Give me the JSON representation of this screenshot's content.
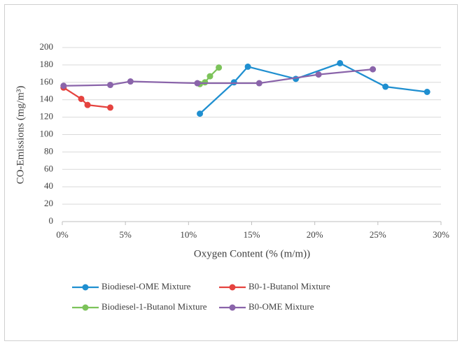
{
  "chart_data": {
    "type": "line",
    "x_label": "Oxygen Content (% (m/m))",
    "y_label": "CO-Emissions (mg/m³)",
    "xlim": [
      0,
      30
    ],
    "xticks": [
      {
        "value": 0,
        "label": "0%"
      },
      {
        "value": 5,
        "label": "5%"
      },
      {
        "value": 10,
        "label": "10%"
      },
      {
        "value": 15,
        "label": "15%"
      },
      {
        "value": 20,
        "label": "20%"
      },
      {
        "value": 25,
        "label": "25%"
      },
      {
        "value": 30,
        "label": "30%"
      }
    ],
    "ylim": [
      0,
      200
    ],
    "yticks": [
      0,
      20,
      40,
      60,
      80,
      100,
      120,
      140,
      160,
      180,
      200
    ],
    "grid": true,
    "legend": "bottom",
    "series": [
      {
        "name": "Biodiesel-OME Mixture",
        "color": "#1f8fd0",
        "x": [
          10.9,
          13.6,
          14.7,
          18.5,
          22,
          25.6,
          28.9
        ],
        "values": [
          124,
          160,
          178,
          164,
          182,
          155,
          149
        ]
      },
      {
        "name": "B0-1-Butanol Mixture",
        "color": "#e5433f",
        "x": [
          0.1,
          1.5,
          2,
          3.8
        ],
        "values": [
          154,
          141,
          134,
          131
        ]
      },
      {
        "name": "Biodiesel-1-Butanol Mixture",
        "color": "#7cc35a",
        "x": [
          10.9,
          11.3,
          11.7,
          12.4
        ],
        "values": [
          158,
          160,
          167,
          177
        ]
      },
      {
        "name": "B0-OME Mixture",
        "color": "#8a64aa",
        "x": [
          0.1,
          3.8,
          5.4,
          10.7,
          15.6,
          20.3,
          24.6
        ],
        "values": [
          156,
          157,
          161,
          159,
          159,
          169,
          175
        ]
      }
    ]
  }
}
